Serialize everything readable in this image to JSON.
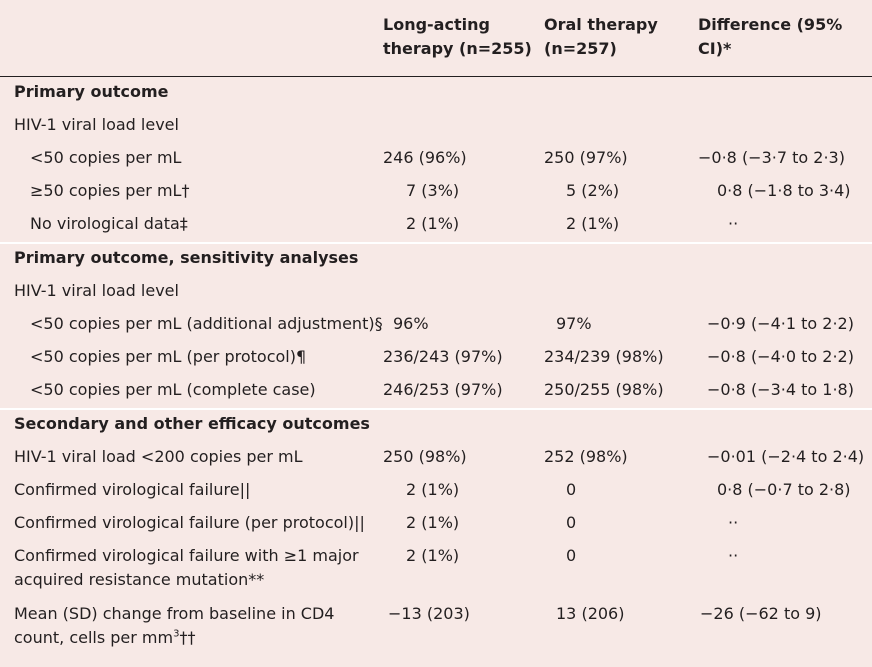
{
  "header": {
    "col_long_line1": "Long-acting",
    "col_long_line2": "therapy (n=255)",
    "col_oral_line1": "Oral therapy",
    "col_oral_line2": "(n=257)",
    "col_diff": "Difference (95% CI)*"
  },
  "rows": [
    {
      "label": "Primary outcome"
    },
    {
      "label": "HIV-1 viral load level"
    },
    {
      "label": "<50 copies per mL",
      "long": "246 (96%)",
      "oral": "250 (97%)",
      "diff": "−0·8 (−3·7 to 2·3)"
    },
    {
      "label": "≥50 copies per mL†",
      "long": "7 (3%)",
      "oral": "5 (2%)",
      "diff": "0·8 (−1·8 to 3·4)"
    },
    {
      "label": "No virological data‡",
      "long": "2 (1%)",
      "oral": "2 (1%)",
      "diff": "··"
    },
    {
      "label": "Primary outcome, sensitivity analyses"
    },
    {
      "label": "HIV-1 viral load level"
    },
    {
      "label": "<50 copies per mL (additional adjustment)§",
      "long": "96%",
      "oral": "97%",
      "diff": "−0·9 (−4·1 to 2·2)"
    },
    {
      "label": "<50 copies per mL (per protocol)¶",
      "long": "236/243 (97%)",
      "oral": "234/239 (98%)",
      "diff": "−0·8 (−4·0 to 2·2)"
    },
    {
      "label": "<50 copies per mL (complete case)",
      "long": "246/253 (97%)",
      "oral": "250/255 (98%)",
      "diff": "−0·8 (−3·4 to 1·8)"
    },
    {
      "label": "Secondary and other efficacy outcomes"
    },
    {
      "label": "HIV-1 viral load <200 copies per mL",
      "long": "250 (98%)",
      "oral": "252 (98%)",
      "diff": "−0·01 (−2·4 to 2·4)"
    },
    {
      "label": "Confirmed virological failure||",
      "long": "2 (1%)",
      "oral": "0",
      "diff": "0·8 (−0·7 to 2·8)"
    },
    {
      "label": "Confirmed virological failure (per protocol)||",
      "long": "2 (1%)",
      "oral": "0",
      "diff": "··"
    },
    {
      "label_line1": "Confirmed virological failure with ≥1 major",
      "label_line2": "acquired resistance mutation**",
      "long": "2 (1%)",
      "oral": "0",
      "diff": "··"
    },
    {
      "label_line1": "Mean (SD) change from baseline in CD4",
      "label_line2_pre": "count, cells per mm",
      "label_line2_sup": "3",
      "label_line2_post": "††",
      "long": "−13 (203)",
      "oral": "13 (206)",
      "diff": "−26 (−62 to 9)"
    }
  ]
}
